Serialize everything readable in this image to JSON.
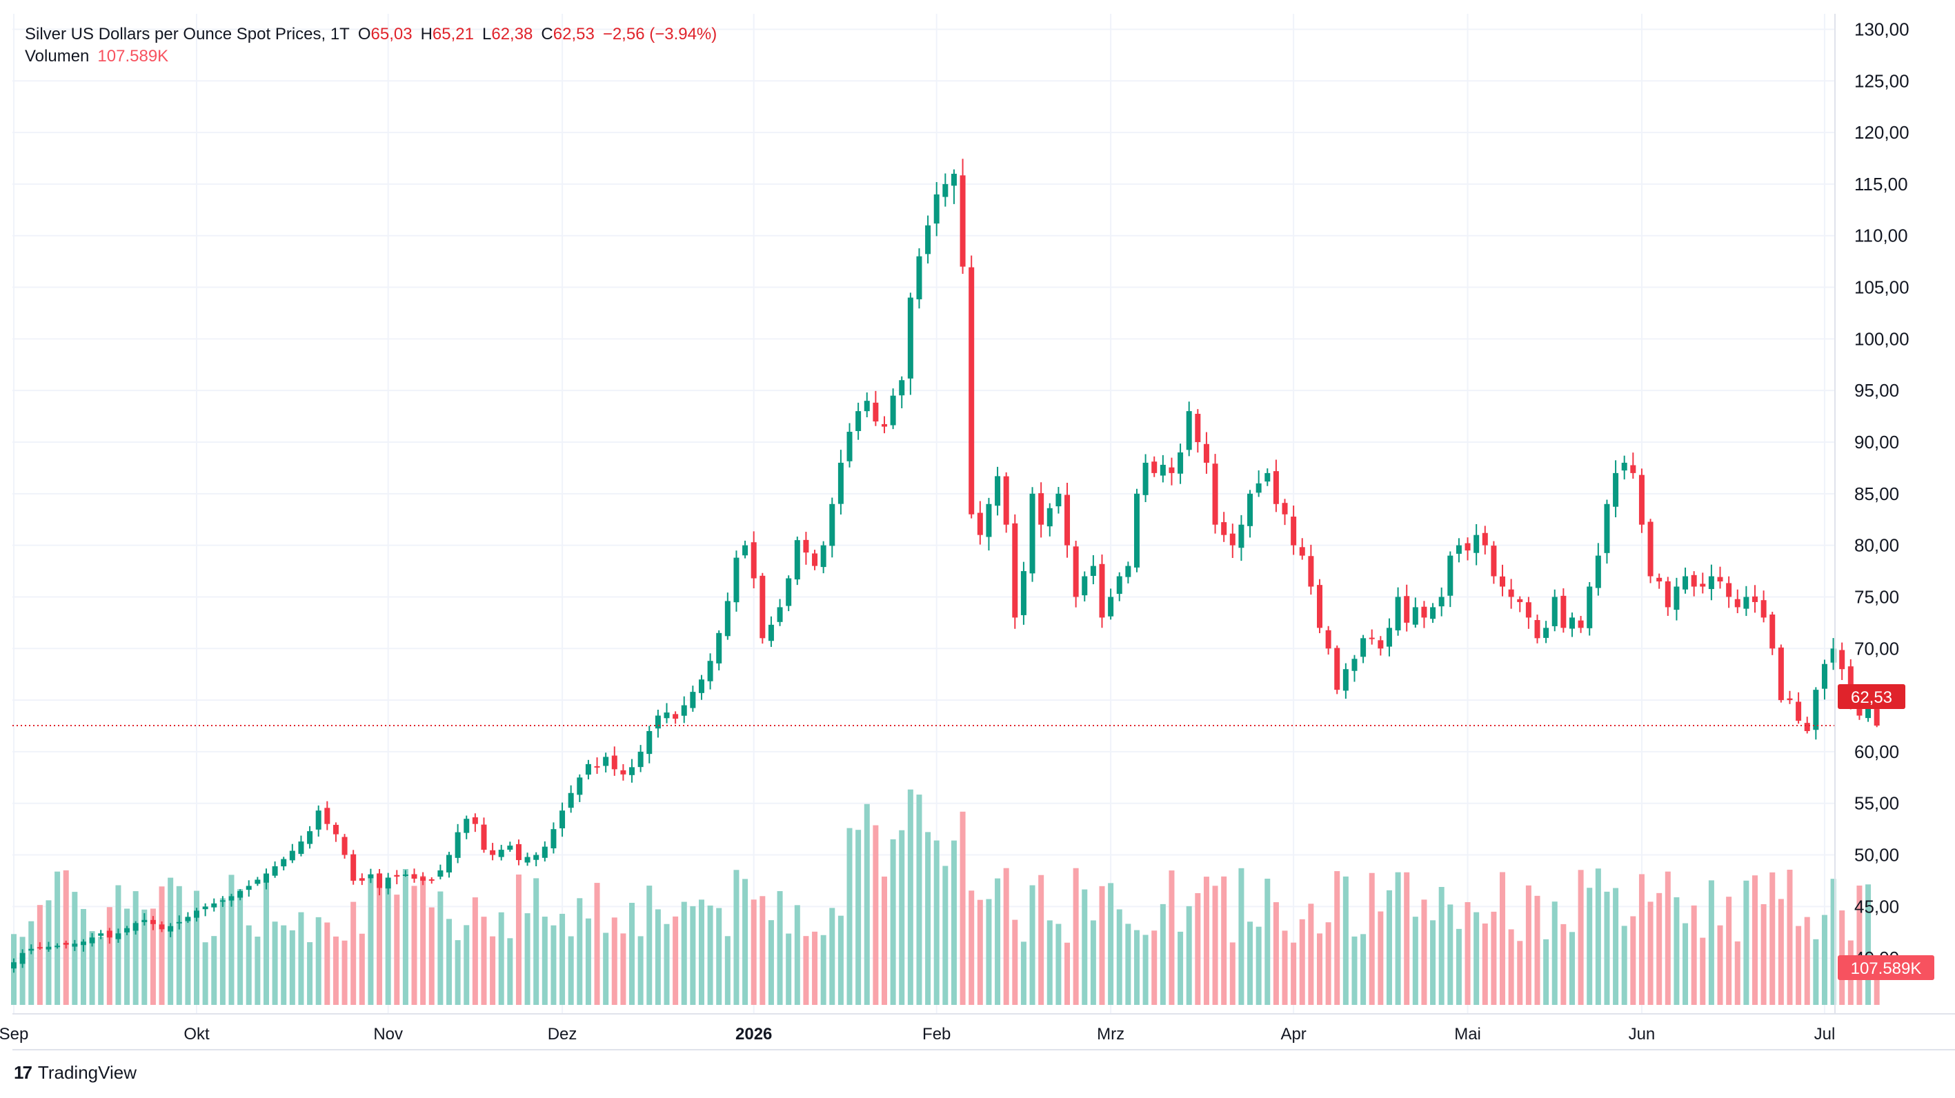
{
  "legend": {
    "title": "Silver US Dollars per Ounce Spot Prices, 1T",
    "o_label": "O",
    "o_value": "65,03",
    "h_label": "H",
    "h_value": "65,21",
    "l_label": "L",
    "l_value": "62,38",
    "c_label": "C",
    "c_value": "62,53",
    "change": "−2,56 (−3.94%)",
    "volume_label": "Volumen",
    "volume_value": "107.589K"
  },
  "branding": {
    "name": "TradingView"
  },
  "colors": {
    "up": "#26a69a",
    "down": "#e0232b",
    "up_candle": "#089981",
    "down_candle": "#f23645",
    "vol_up": "#8fd2c7",
    "vol_down": "#f9a3aa",
    "grid": "#f0f3fa"
  },
  "chart_data": {
    "type": "candlestick",
    "symbol": "Silver US Dollars per Ounce Spot Prices",
    "interval": "1T",
    "y_axis": {
      "ylim": [
        34.6,
        131.5
      ],
      "ticks": [
        "130,00",
        "125,00",
        "120,00",
        "115,00",
        "110,00",
        "105,00",
        "100,00",
        "95,00",
        "90,00",
        "85,00",
        "80,00",
        "75,00",
        "70,00",
        "65,00",
        "60,00",
        "55,00",
        "50,00",
        "45,00",
        "40,00"
      ]
    },
    "x_axis": {
      "ticks": [
        {
          "label": "Sep",
          "index": 0
        },
        {
          "label": "Okt",
          "index": 21
        },
        {
          "label": "Nov",
          "index": 43
        },
        {
          "label": "Dez",
          "index": 63
        },
        {
          "label": "2026",
          "index": 85,
          "bold": true
        },
        {
          "label": "Feb",
          "index": 106
        },
        {
          "label": "Mrz",
          "index": 126
        },
        {
          "label": "Apr",
          "index": 147
        },
        {
          "label": "Mai",
          "index": 167
        },
        {
          "label": "Jun",
          "index": 187
        },
        {
          "label": "Jul",
          "index": 208
        }
      ]
    },
    "last_price_label": "62,53",
    "last_price": 62.53,
    "last_volume_label": "107.589K",
    "grid": true,
    "closes": [
      39.6,
      40.5,
      40.9,
      41.0,
      41.1,
      41.2,
      41.3,
      41.4,
      41.6,
      42.0,
      42.4,
      42.0,
      42.4,
      42.9,
      43.4,
      43.7,
      43.3,
      42.8,
      43.1,
      43.5,
      44.0,
      44.6,
      45.0,
      45.3,
      45.6,
      46.0,
      46.5,
      47.0,
      47.6,
      48.2,
      48.9,
      49.6,
      50.4,
      51.3,
      52.3,
      54.3,
      53.0,
      52.0,
      50.0,
      47.5,
      47.5,
      48.1,
      46.8,
      47.8,
      47.9,
      48.1,
      47.7,
      47.5,
      47.6,
      48.5,
      50.0,
      52.2,
      53.5,
      53.0,
      50.5,
      50.0,
      50.5,
      50.9,
      49.5,
      49.8,
      50.0,
      50.8,
      52.5,
      54.3,
      56.0,
      57.5,
      58.8,
      58.5,
      59.5,
      58.3,
      57.8,
      58.5,
      60.0,
      62.0,
      63.5,
      63.8,
      63.2,
      64.5,
      65.8,
      67.0,
      68.8,
      71.5,
      74.6,
      78.8,
      80.0,
      76.8,
      71.0,
      72.3,
      74.0,
      76.8,
      80.5,
      79.3,
      78.0,
      80.0,
      84.0,
      88.0,
      91.0,
      93.0,
      94.0,
      92.0,
      91.5,
      94.5,
      96.0,
      104.0,
      108.0,
      111.0,
      114.0,
      115.0,
      116.0,
      107.0,
      83.0,
      81.0,
      84.0,
      86.7,
      82.0,
      73.0,
      77.5,
      85.0,
      82.0,
      83.6,
      85.0,
      80.0,
      75.0,
      77.0,
      78.0,
      73.0,
      75.0,
      77.0,
      78.0,
      85.0,
      88.0,
      87.0,
      87.8,
      87.0,
      89.0,
      93.0,
      90.0,
      88.0,
      82.0,
      81.0,
      80.0,
      82.0,
      85.0,
      86.0,
      87.0,
      84.0,
      83.0,
      80.0,
      79.0,
      76.0,
      72.0,
      70.0,
      66.0,
      68.0,
      69.0,
      71.0,
      71.0,
      70.0,
      72.0,
      75.0,
      72.5,
      74.0,
      73.0,
      74.0,
      75.0,
      79.0,
      80.0,
      79.5,
      81.0,
      80.0,
      77.0,
      76.0,
      75.0,
      74.5,
      73.0,
      71.0,
      72.0,
      75.0,
      72.0,
      73.0,
      72.0,
      76.0,
      79.0,
      84.0,
      87.0,
      88.0,
      87.0,
      82.0,
      77.0,
      76.5,
      74.0,
      76.0,
      77.0,
      76.0,
      76.0,
      77.0,
      76.5,
      75.0,
      74.0,
      75.0,
      74.5,
      73.0,
      70.0,
      65.0,
      65.0,
      63.0,
      62.0,
      66.0,
      68.5,
      70.0,
      68.0,
      65.0,
      63.5,
      65.0,
      62.53
    ]
  }
}
